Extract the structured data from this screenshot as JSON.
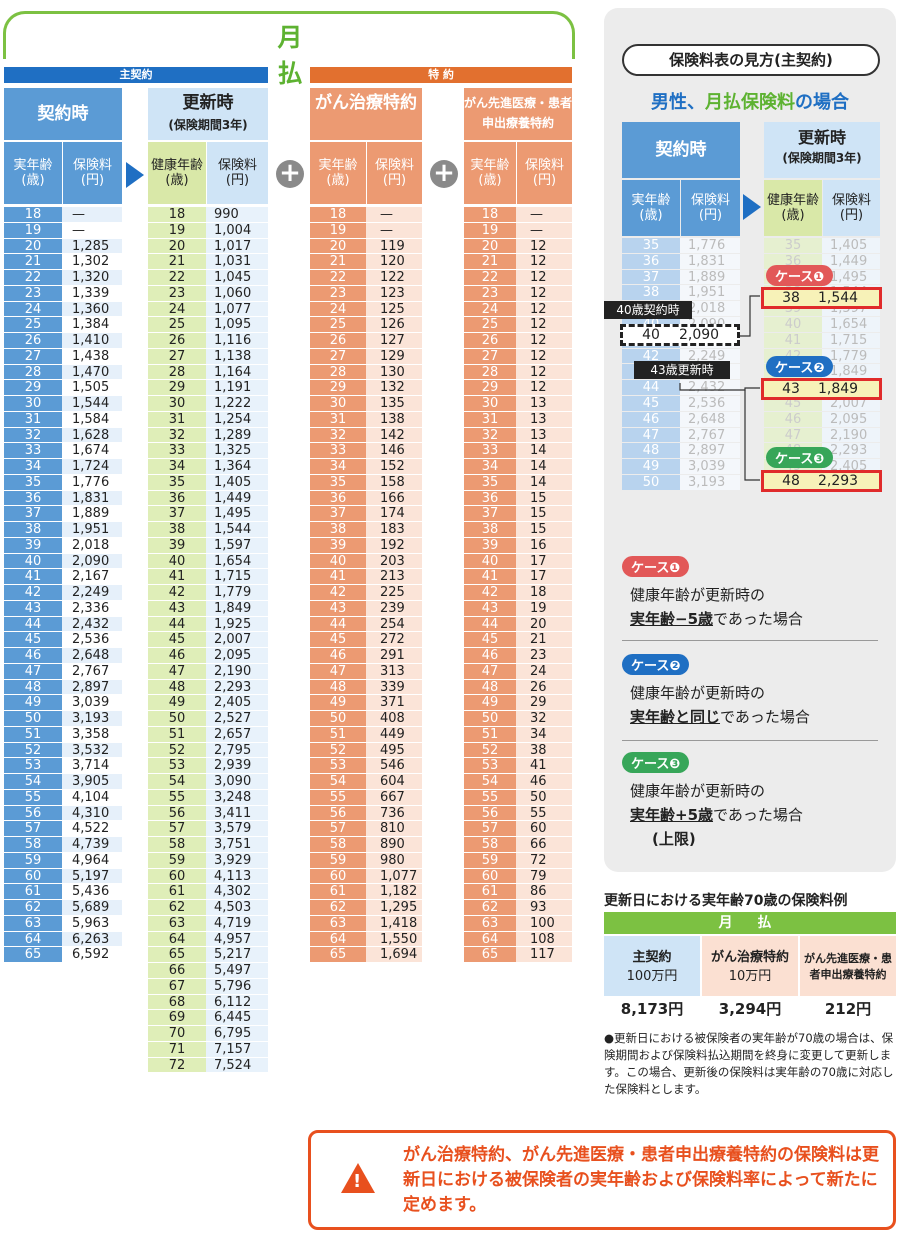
{
  "main_title": "月 払",
  "shukeiyaku_label": "主契約",
  "tokuyaku_label": "特 約",
  "headers": {
    "keiyaku": "契約時",
    "koushin": "更新時",
    "koushin_sub": "(保険期間3年)",
    "jitsu_nenrei": "実年齢(歳)",
    "hokenryo": "保険料(円)",
    "kenko_nenrei": "健康年齢(歳)",
    "gan": "がん治療特約",
    "senshin": "がん先進医療・患者申出療養特約"
  },
  "ages_main": [
    "18",
    "19",
    "20",
    "21",
    "22",
    "23",
    "24",
    "25",
    "26",
    "27",
    "28",
    "29",
    "30",
    "31",
    "32",
    "33",
    "34",
    "35",
    "36",
    "37",
    "38",
    "39",
    "40",
    "41",
    "42",
    "43",
    "44",
    "45",
    "46",
    "47",
    "48",
    "49",
    "50",
    "51",
    "52",
    "53",
    "54",
    "55",
    "56",
    "57",
    "58",
    "59",
    "60",
    "61",
    "62",
    "63",
    "64",
    "65"
  ],
  "keiyaku_prem": [
    "—",
    "—",
    "1,285",
    "1,302",
    "1,320",
    "1,339",
    "1,360",
    "1,384",
    "1,410",
    "1,438",
    "1,470",
    "1,505",
    "1,544",
    "1,584",
    "1,628",
    "1,674",
    "1,724",
    "1,776",
    "1,831",
    "1,889",
    "1,951",
    "2,018",
    "2,090",
    "2,167",
    "2,249",
    "2,336",
    "2,432",
    "2,536",
    "2,648",
    "2,767",
    "2,897",
    "3,039",
    "3,193",
    "3,358",
    "3,532",
    "3,714",
    "3,905",
    "4,104",
    "4,310",
    "4,522",
    "4,739",
    "4,964",
    "5,197",
    "5,436",
    "5,689",
    "5,963",
    "6,263",
    "6,592"
  ],
  "ages_kenko": [
    "18",
    "19",
    "20",
    "21",
    "22",
    "23",
    "24",
    "25",
    "26",
    "27",
    "28",
    "29",
    "30",
    "31",
    "32",
    "33",
    "34",
    "35",
    "36",
    "37",
    "38",
    "39",
    "40",
    "41",
    "42",
    "43",
    "44",
    "45",
    "46",
    "47",
    "48",
    "49",
    "50",
    "51",
    "52",
    "53",
    "54",
    "55",
    "56",
    "57",
    "58",
    "59",
    "60",
    "61",
    "62",
    "63",
    "64",
    "65",
    "66",
    "67",
    "68",
    "69",
    "70",
    "71",
    "72"
  ],
  "koushin_prem": [
    "990",
    "1,004",
    "1,017",
    "1,031",
    "1,045",
    "1,060",
    "1,077",
    "1,095",
    "1,116",
    "1,138",
    "1,164",
    "1,191",
    "1,222",
    "1,254",
    "1,289",
    "1,325",
    "1,364",
    "1,405",
    "1,449",
    "1,495",
    "1,544",
    "1,597",
    "1,654",
    "1,715",
    "1,779",
    "1,849",
    "1,925",
    "2,007",
    "2,095",
    "2,190",
    "2,293",
    "2,405",
    "2,527",
    "2,657",
    "2,795",
    "2,939",
    "3,090",
    "3,248",
    "3,411",
    "3,579",
    "3,751",
    "3,929",
    "4,113",
    "4,302",
    "4,503",
    "4,719",
    "4,957",
    "5,217",
    "5,497",
    "5,796",
    "6,112",
    "6,445",
    "6,795",
    "7,157",
    "7,524"
  ],
  "gan_prem": [
    "—",
    "—",
    "119",
    "120",
    "122",
    "123",
    "125",
    "126",
    "127",
    "129",
    "130",
    "132",
    "135",
    "138",
    "142",
    "146",
    "152",
    "158",
    "166",
    "174",
    "183",
    "192",
    "203",
    "213",
    "225",
    "239",
    "254",
    "272",
    "291",
    "313",
    "339",
    "371",
    "408",
    "449",
    "495",
    "546",
    "604",
    "667",
    "736",
    "810",
    "890",
    "980",
    "1,077",
    "1,182",
    "1,295",
    "1,418",
    "1,550",
    "1,694"
  ],
  "senshin_prem": [
    "—",
    "—",
    "12",
    "12",
    "12",
    "12",
    "12",
    "12",
    "12",
    "12",
    "12",
    "12",
    "13",
    "13",
    "13",
    "14",
    "14",
    "14",
    "15",
    "15",
    "15",
    "16",
    "17",
    "17",
    "18",
    "19",
    "20",
    "21",
    "23",
    "24",
    "26",
    "29",
    "32",
    "34",
    "38",
    "41",
    "46",
    "50",
    "55",
    "60",
    "66",
    "72",
    "79",
    "86",
    "93",
    "100",
    "108",
    "117"
  ],
  "guide": {
    "title": "保険料表の見方(主契約)",
    "subtitle_a": "男性、",
    "subtitle_b": "月払保険料",
    "subtitle_c": "の場合",
    "ages": [
      "35",
      "36",
      "37",
      "38",
      "39",
      "40",
      "41",
      "42",
      "43",
      "44",
      "45",
      "46",
      "47",
      "48",
      "49",
      "50"
    ],
    "keiyaku": [
      "1,776",
      "1,831",
      "1,889",
      "1,951",
      "2,018",
      "2,090",
      "2,167",
      "2,249",
      "2,336",
      "2,432",
      "2,536",
      "2,648",
      "2,767",
      "2,897",
      "3,039",
      "3,193"
    ],
    "koushin": [
      "1,405",
      "1,449",
      "1,495",
      "1,544",
      "1,597",
      "1,654",
      "1,715",
      "1,779",
      "1,849",
      "1,925",
      "2,007",
      "2,095",
      "2,190",
      "2,293",
      "2,405",
      "2,527"
    ],
    "label_40": "40歳契約時",
    "label_43": "43歳更新時",
    "case1": "ケース❶",
    "case2": "ケース❷",
    "case3": "ケース❸",
    "case_common": "健康年齢が更新時の",
    "case1_b": "実年齢−5歳",
    "case1_t": "であった場合",
    "case2_b": "実年齢と同じ",
    "case2_t": "であった場合",
    "case3_b": "実年齢+5歳",
    "case3_t": "であった場合",
    "case3_note": "(上限)",
    "hl1_age": "38",
    "hl1_val": "1,544",
    "hl2_age": "43",
    "hl2_val": "1,849",
    "hl3_age": "48",
    "hl3_val": "2,293",
    "sel_age": "40",
    "sel_val": "2,090"
  },
  "age70": {
    "title": "更新日における実年齢70歳の保険料例",
    "band": "月 払",
    "c1": "主契約",
    "c1s": "100万円",
    "c1v": "8,173円",
    "c2": "がん治療特約",
    "c2s": "10万円",
    "c2v": "3,294円",
    "c3": "がん先進医療・患者申出療養特約",
    "c3v": "212円",
    "note": "●更新日における被保険者の実年齢が70歳の場合は、保険期間および保険料払込期間を終身に変更して更新します。この場合、更新後の保険料は実年齢の70歳に対応した保険料とします。"
  },
  "warning": "がん治療特約、がん先進医療・患者申出療養特約の保険料は更新日における被保険者の実年齢および保険料率によって新たに定めます。",
  "colors": {
    "blue": "#5b9bd5",
    "orange": "#ec9a72",
    "green": "#7cc142",
    "red": "#e02b2b"
  }
}
